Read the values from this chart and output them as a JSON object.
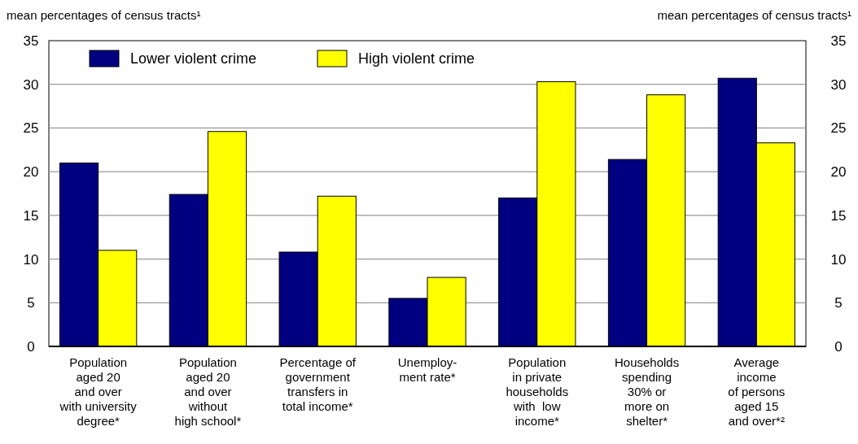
{
  "chart_data": {
    "type": "bar",
    "ylabel": "mean percentages of census tracts¹",
    "y2label": "mean percentages of census tracts¹",
    "categories": [
      "Population\naged 20\nand over\nwith university\ndegree*",
      "Population\naged 20\nand over\nwithout\nhigh school*",
      "Percentage of\ngovernment\ntransfers in\ntotal income*",
      "Unemploy-\nment rate*",
      "Population\nin private\nhouseholds\nwith  low\nincome*",
      "Households\nspending\n30% or\nmore on\nshelter*",
      "Average\nincome\nof persons\naged 15\nand over*²"
    ],
    "series": [
      {
        "name": "Lower violent crime",
        "color": "#000080",
        "values": [
          21.0,
          17.4,
          10.8,
          5.5,
          17.0,
          21.4,
          30.7
        ]
      },
      {
        "name": "High violent crime",
        "color": "#ffff00",
        "values": [
          11.0,
          24.6,
          17.2,
          7.9,
          30.3,
          28.8,
          23.3
        ]
      }
    ],
    "ylim": [
      0,
      35
    ],
    "yticks": [
      0,
      5,
      10,
      15,
      20,
      25,
      30,
      35
    ],
    "y2lim": [
      0,
      35
    ],
    "y2ticks": [
      0,
      5,
      10,
      15,
      20,
      25,
      30,
      35
    ],
    "grid": "y",
    "legend": "top left"
  }
}
